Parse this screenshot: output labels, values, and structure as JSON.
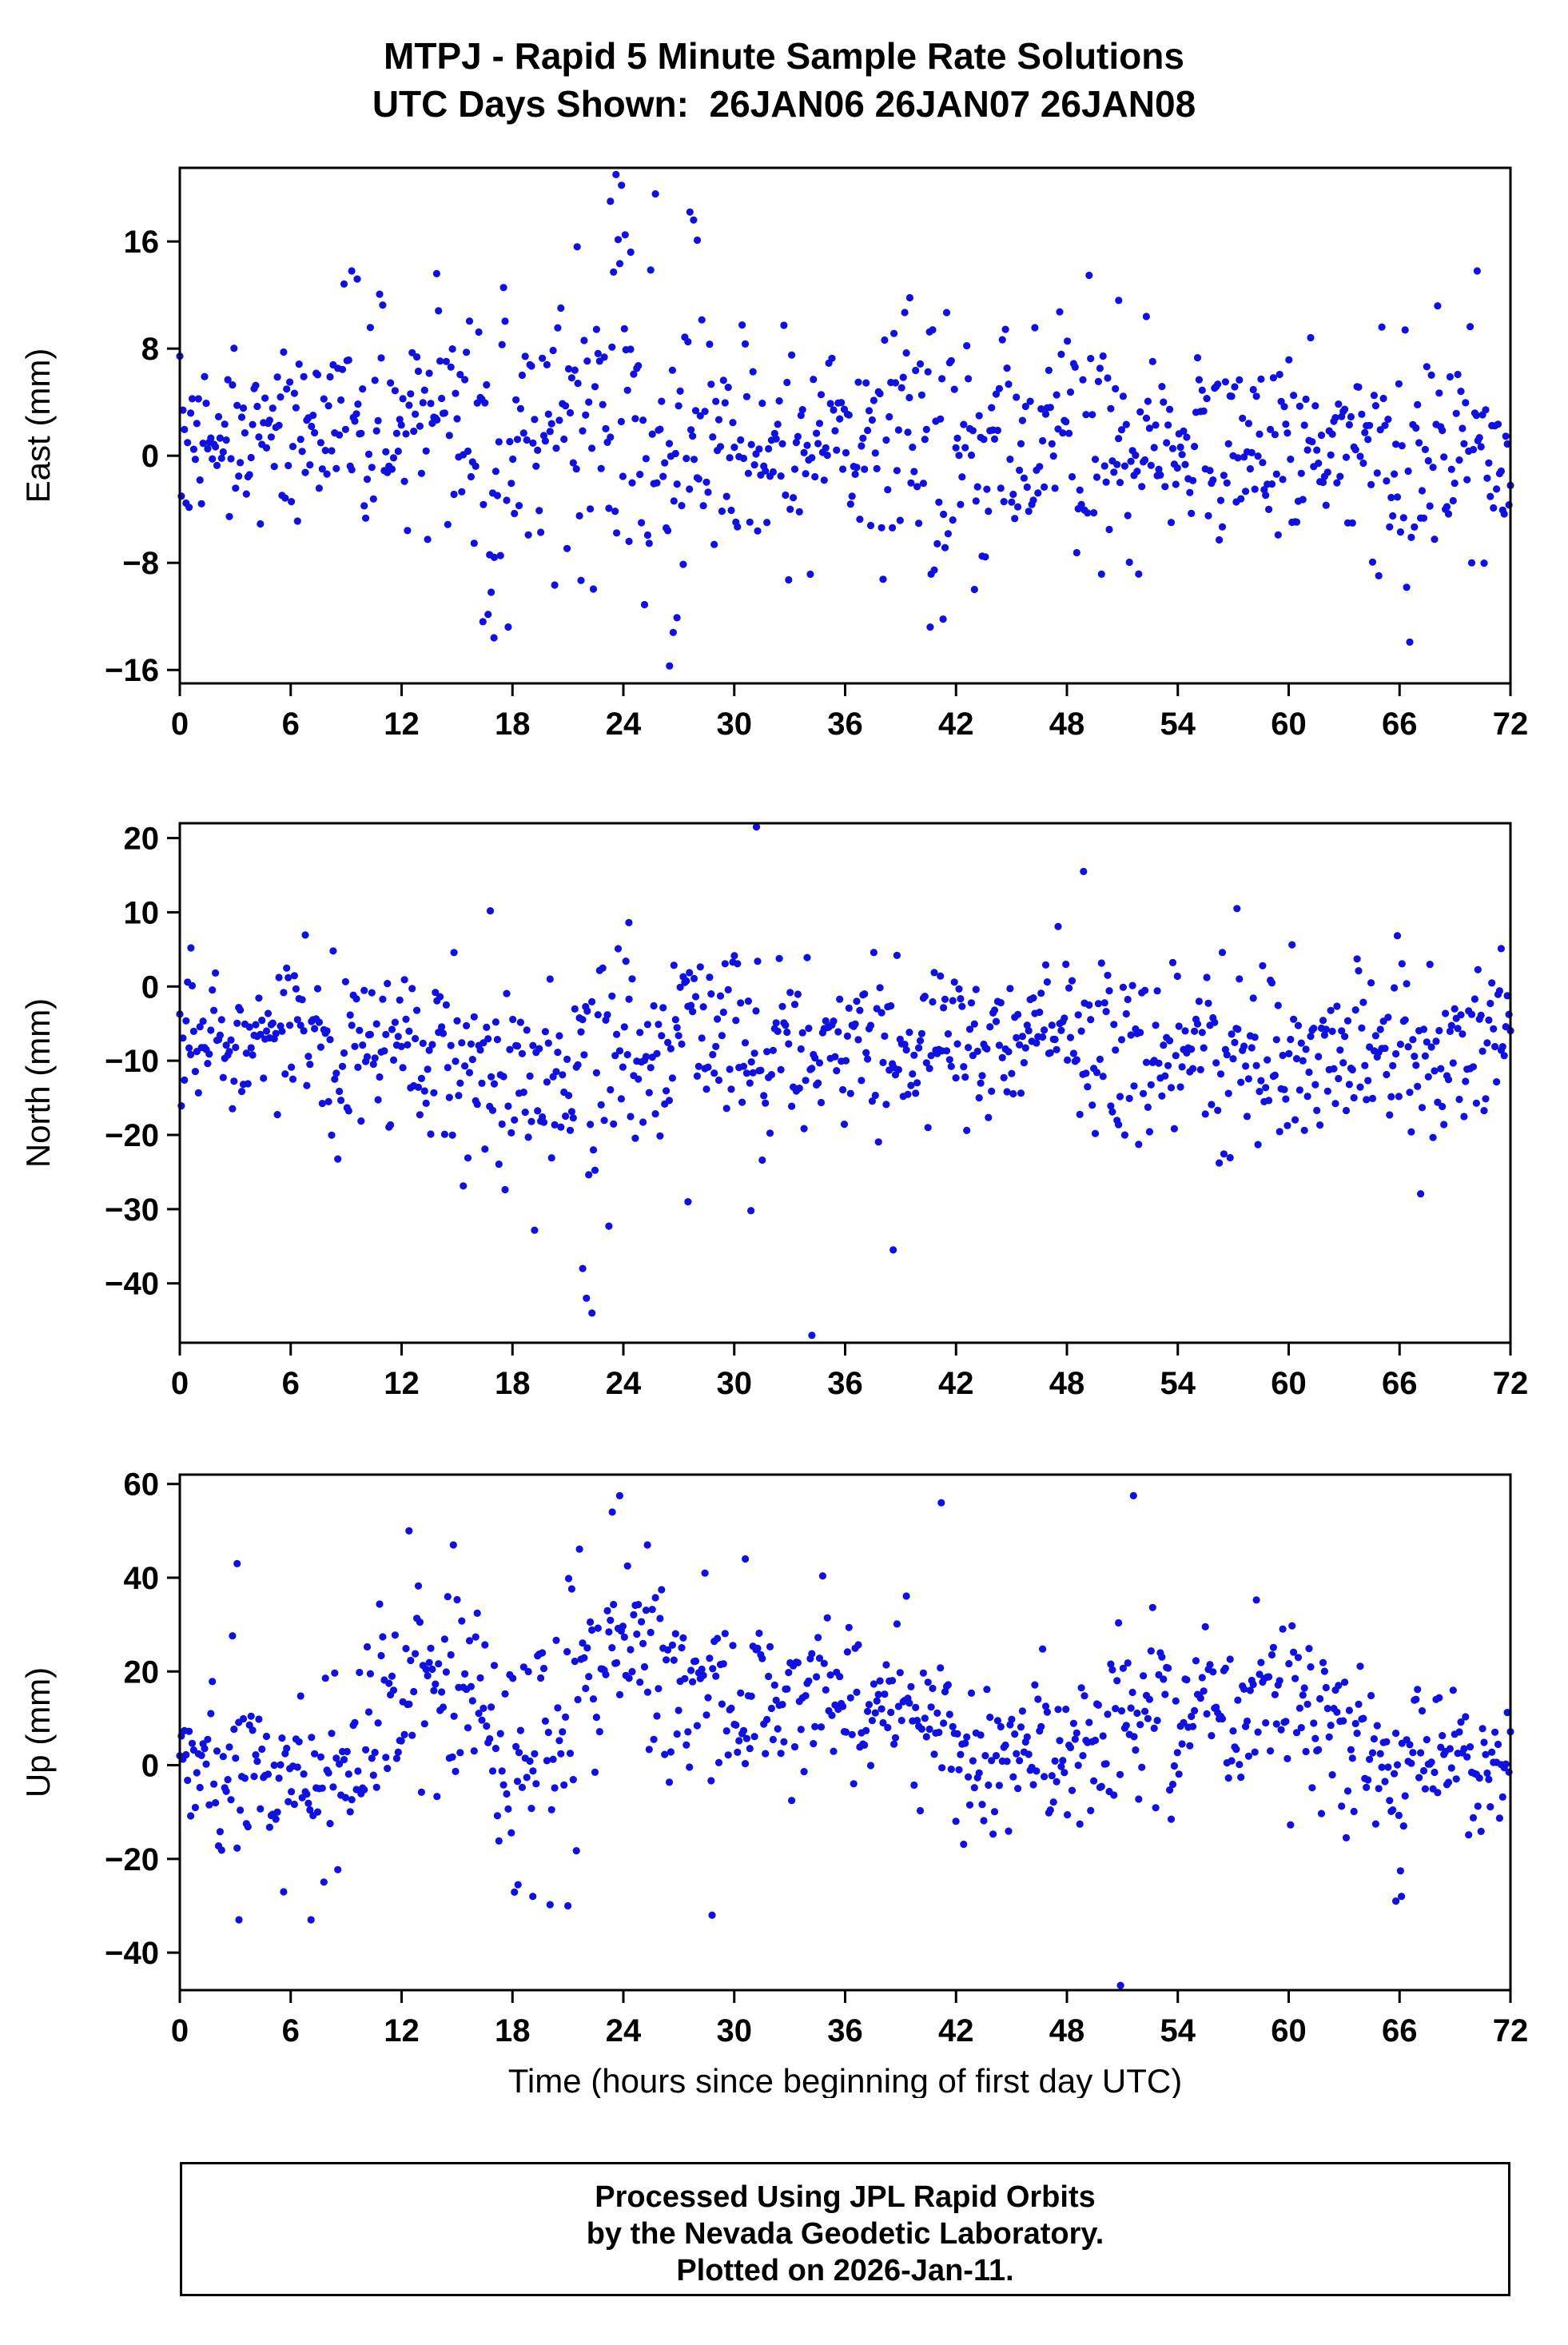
{
  "header": {
    "title": "MTPJ - Rapid 5 Minute Sample Rate Solutions",
    "subtitle": "UTC Days Shown:  26JAN06 26JAN07 26JAN08"
  },
  "footer": {
    "line1": "Processed Using JPL Rapid Orbits",
    "line2": "by the Nevada Geodetic Laboratory.",
    "line3": "Plotted on 2026-Jan-11."
  },
  "chart_data": [
    {
      "type": "scatter",
      "name": "east",
      "ylabel": "East (mm)",
      "xlabel": "",
      "xlim": [
        0,
        72
      ],
      "xticks": [
        0,
        6,
        12,
        18,
        24,
        30,
        36,
        42,
        48,
        54,
        60,
        66,
        72
      ],
      "ylim": [
        -17,
        21.5
      ],
      "yticks": [
        -16,
        -8,
        0,
        8,
        16
      ],
      "grid": false,
      "legend": false,
      "marker_color": "#1010e0",
      "gen": {
        "seed": 42,
        "n": 860,
        "x_start": 0,
        "x_end": 72,
        "mean_points": [
          [
            0,
            0.5
          ],
          [
            3,
            1.5
          ],
          [
            6,
            2
          ],
          [
            9,
            3
          ],
          [
            12,
            3
          ],
          [
            15,
            2
          ],
          [
            18,
            0.5
          ],
          [
            21,
            1
          ],
          [
            24,
            1.5
          ],
          [
            27,
            -0.5
          ],
          [
            30,
            0.5
          ],
          [
            36,
            0.5
          ],
          [
            42,
            0.5
          ],
          [
            48,
            1.5
          ],
          [
            54,
            0
          ],
          [
            60,
            0.5
          ],
          [
            66,
            -0.5
          ],
          [
            72,
            0
          ]
        ],
        "std_points": [
          [
            0,
            3.2
          ],
          [
            6,
            3
          ],
          [
            9,
            4
          ],
          [
            12,
            3.5
          ],
          [
            15,
            4.5
          ],
          [
            18,
            4.8
          ],
          [
            21,
            5.5
          ],
          [
            24,
            7.2
          ],
          [
            26,
            7.5
          ],
          [
            28,
            5.5
          ],
          [
            30,
            4
          ],
          [
            33,
            3.2
          ],
          [
            36,
            3.2
          ],
          [
            39,
            4.5
          ],
          [
            41,
            5.5
          ],
          [
            44,
            3.8
          ],
          [
            48,
            3.5
          ],
          [
            51,
            4
          ],
          [
            54,
            3.2
          ],
          [
            60,
            3.2
          ],
          [
            63,
            3.5
          ],
          [
            66,
            4.2
          ],
          [
            69,
            4.5
          ],
          [
            72,
            3.2
          ]
        ],
        "outliers": [
          [
            23.3,
            19
          ],
          [
            23.6,
            21
          ],
          [
            23.9,
            20.2
          ],
          [
            24.1,
            16.5
          ],
          [
            24.4,
            15.2
          ],
          [
            27.6,
            18.2
          ],
          [
            27.8,
            17.6
          ],
          [
            28.0,
            16.1
          ],
          [
            9.3,
            13.8
          ],
          [
            9.6,
            13.2
          ],
          [
            13.9,
            13.6
          ],
          [
            21.5,
            15.6
          ],
          [
            26.5,
            -15.7
          ],
          [
            26.7,
            -13.2
          ],
          [
            26.9,
            -12.1
          ],
          [
            16.4,
            -12.4
          ],
          [
            17.0,
            -13.6
          ],
          [
            40.6,
            -12.8
          ],
          [
            41.3,
            -12.2
          ],
          [
            70.2,
            13.8
          ],
          [
            39.5,
            11.8
          ],
          [
            50.8,
            11.6
          ],
          [
            52.3,
            10.4
          ]
        ]
      }
    },
    {
      "type": "scatter",
      "name": "north",
      "ylabel": "North (mm)",
      "xlabel": "",
      "xlim": [
        0,
        72
      ],
      "xticks": [
        0,
        6,
        12,
        18,
        24,
        30,
        36,
        42,
        48,
        54,
        60,
        66,
        72
      ],
      "ylim": [
        -48,
        22
      ],
      "yticks": [
        -40,
        -30,
        -20,
        -10,
        0,
        10,
        20
      ],
      "grid": false,
      "legend": false,
      "marker_color": "#1010e0",
      "gen": {
        "seed": 7,
        "n": 860,
        "x_start": 0,
        "x_end": 72,
        "mean_points": [
          [
            0,
            -6
          ],
          [
            3,
            -8
          ],
          [
            6,
            -7
          ],
          [
            9,
            -9
          ],
          [
            12,
            -8
          ],
          [
            15,
            -11
          ],
          [
            18,
            -12
          ],
          [
            21,
            -13
          ],
          [
            24,
            -10
          ],
          [
            27,
            -9
          ],
          [
            30,
            -6
          ],
          [
            33,
            -9
          ],
          [
            36,
            -10
          ],
          [
            39,
            -8
          ],
          [
            42,
            -8
          ],
          [
            48,
            -6
          ],
          [
            51,
            -9
          ],
          [
            54,
            -9
          ],
          [
            57,
            -10
          ],
          [
            60,
            -11
          ],
          [
            63,
            -9
          ],
          [
            66,
            -10
          ],
          [
            69,
            -8
          ],
          [
            72,
            -5
          ]
        ],
        "std_points": [
          [
            0,
            4
          ],
          [
            6,
            5
          ],
          [
            9,
            5.5
          ],
          [
            12,
            5
          ],
          [
            15,
            6.5
          ],
          [
            18,
            7
          ],
          [
            21,
            8.5
          ],
          [
            23,
            8
          ],
          [
            26,
            6
          ],
          [
            30,
            6.5
          ],
          [
            33,
            7
          ],
          [
            36,
            5.5
          ],
          [
            42,
            5
          ],
          [
            48,
            5
          ],
          [
            51,
            5.5
          ],
          [
            54,
            5
          ],
          [
            57,
            6
          ],
          [
            60,
            5.5
          ],
          [
            63,
            5
          ],
          [
            66,
            6
          ],
          [
            69,
            6
          ],
          [
            72,
            4.5
          ]
        ],
        "outliers": [
          [
            31.2,
            21.5
          ],
          [
            48.9,
            15.5
          ],
          [
            34.2,
            -47
          ],
          [
            22.0,
            -42
          ],
          [
            22.3,
            -44
          ],
          [
            21.8,
            -38
          ],
          [
            38.6,
            -35.5
          ],
          [
            30.9,
            -30.2
          ],
          [
            27.5,
            -29
          ],
          [
            57.2,
            10.5
          ],
          [
            16.8,
            10.2
          ],
          [
            24.3,
            8.6
          ],
          [
            0.6,
            5.2
          ],
          [
            71.5,
            5.1
          ]
        ]
      }
    },
    {
      "type": "scatter",
      "name": "up",
      "ylabel": "Up (mm)",
      "xlabel": "Time (hours since beginning of first day UTC)",
      "xlim": [
        0,
        72
      ],
      "xticks": [
        0,
        6,
        12,
        18,
        24,
        30,
        36,
        42,
        48,
        54,
        60,
        66,
        72
      ],
      "ylim": [
        -48,
        62
      ],
      "yticks": [
        -40,
        -20,
        0,
        20,
        40,
        60
      ],
      "grid": false,
      "legend": false,
      "marker_color": "#1010e0",
      "gen": {
        "seed": 1234,
        "n": 860,
        "x_start": 0,
        "x_end": 72,
        "mean_points": [
          [
            0,
            5
          ],
          [
            2,
            0
          ],
          [
            4,
            -2
          ],
          [
            6,
            -5
          ],
          [
            8,
            -3
          ],
          [
            10,
            3
          ],
          [
            12,
            15
          ],
          [
            14,
            18
          ],
          [
            16,
            15
          ],
          [
            18,
            0
          ],
          [
            20,
            2
          ],
          [
            22,
            18
          ],
          [
            24,
            30
          ],
          [
            26,
            20
          ],
          [
            28,
            17
          ],
          [
            30,
            12
          ],
          [
            34,
            13
          ],
          [
            38,
            15
          ],
          [
            40,
            17
          ],
          [
            42,
            5
          ],
          [
            44,
            2
          ],
          [
            46,
            3
          ],
          [
            48,
            5
          ],
          [
            50,
            5
          ],
          [
            52,
            12
          ],
          [
            54,
            13
          ],
          [
            56,
            10
          ],
          [
            58,
            12
          ],
          [
            60,
            13
          ],
          [
            62,
            8
          ],
          [
            64,
            5
          ],
          [
            66,
            -3
          ],
          [
            68,
            2
          ],
          [
            70,
            -2
          ],
          [
            72,
            5
          ]
        ],
        "std_points": [
          [
            0,
            7
          ],
          [
            4,
            10
          ],
          [
            8,
            9
          ],
          [
            12,
            12
          ],
          [
            16,
            10
          ],
          [
            20,
            13
          ],
          [
            24,
            13
          ],
          [
            28,
            10
          ],
          [
            36,
            9
          ],
          [
            40,
            11
          ],
          [
            44,
            9
          ],
          [
            52,
            10
          ],
          [
            60,
            9
          ],
          [
            64,
            10
          ],
          [
            66,
            11
          ],
          [
            68,
            8
          ],
          [
            72,
            7
          ]
        ],
        "outliers": [
          [
            23.8,
            57.5
          ],
          [
            23.4,
            54
          ],
          [
            41.2,
            56
          ],
          [
            51.6,
            57.5
          ],
          [
            12.4,
            50
          ],
          [
            14.8,
            47
          ],
          [
            30.6,
            44
          ],
          [
            3.1,
            43
          ],
          [
            25.3,
            47
          ],
          [
            50.9,
            -47
          ],
          [
            65.8,
            -29
          ],
          [
            66.1,
            -28
          ],
          [
            3.2,
            -33
          ],
          [
            7.1,
            -33
          ],
          [
            18.3,
            -25.5
          ],
          [
            19.1,
            -28
          ],
          [
            21.0,
            -30
          ],
          [
            28.8,
            -32
          ]
        ]
      }
    }
  ]
}
